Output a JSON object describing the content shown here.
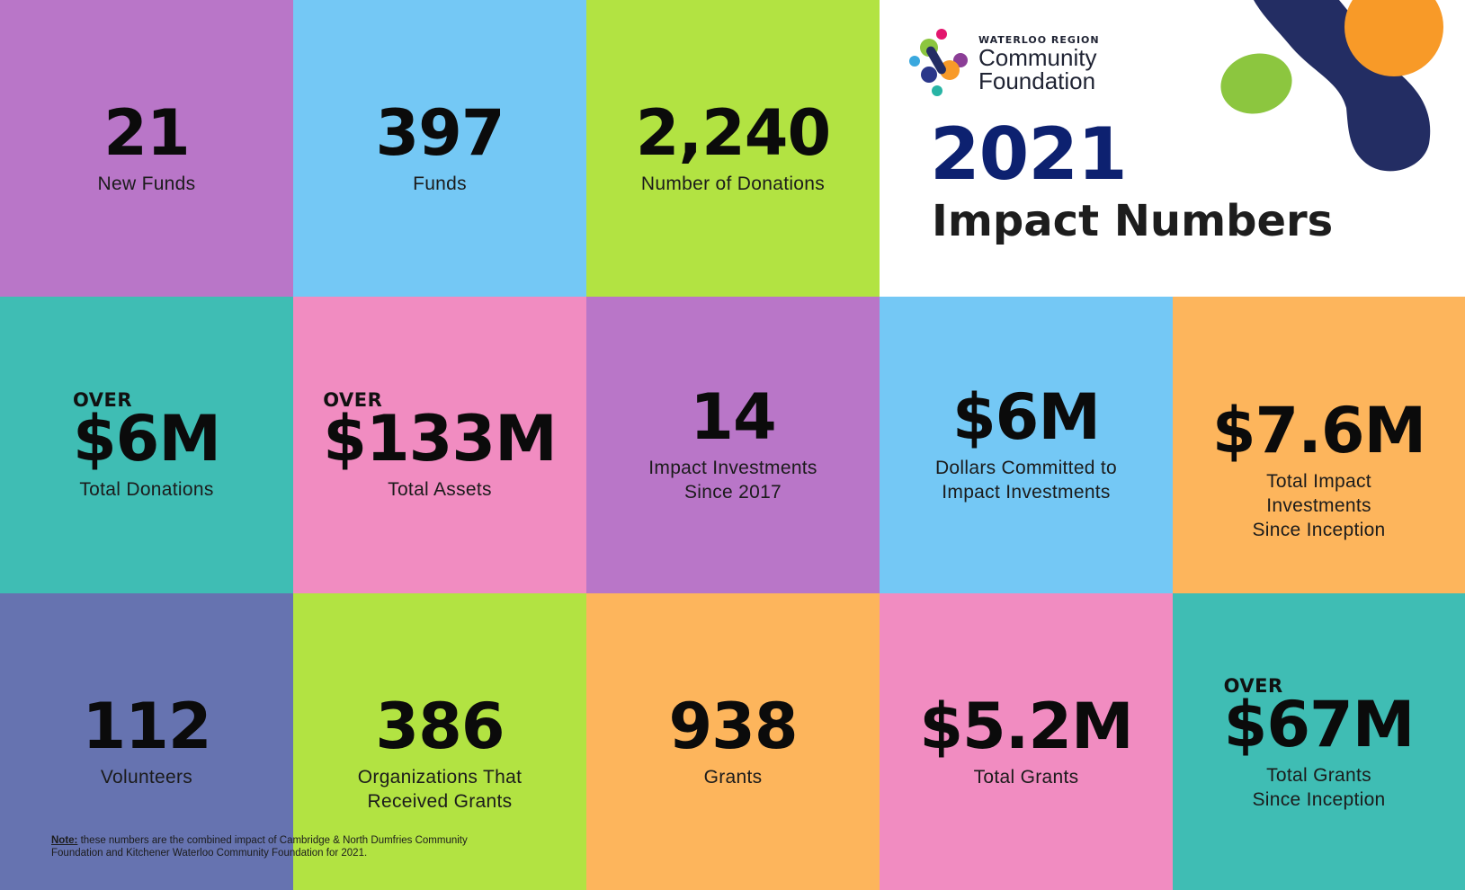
{
  "header": {
    "logo": {
      "line1": "WATERLOO REGION",
      "line2": "Community",
      "line3": "Foundation"
    },
    "year": "2021",
    "subtitle": "Impact Numbers"
  },
  "tiles": [
    {
      "value": "21",
      "label": "New Funds",
      "over": "",
      "color": "#b976c8"
    },
    {
      "value": "397",
      "label": "Funds",
      "over": "",
      "color": "#74c8f5"
    },
    {
      "value": "2,240",
      "label": "Number of Donations",
      "over": "",
      "color": "#b2e342"
    },
    {
      "value": "$6M",
      "label": "Total Donations",
      "over": "OVER",
      "color": "#3fbdb4"
    },
    {
      "value": "$133M",
      "label": "Total Assets",
      "over": "OVER",
      "color": "#f18cc1"
    },
    {
      "value": "14",
      "label": "Impact Investments\nSince 2017",
      "over": "",
      "color": "#b976c8"
    },
    {
      "value": "$6M",
      "label": "Dollars Committed to\nImpact Investments",
      "over": "",
      "color": "#74c8f5"
    },
    {
      "value": "$7.6M",
      "label": "Total Impact\nInvestments\nSince Inception",
      "over": "",
      "color": "#fdb55c"
    },
    {
      "value": "112",
      "label": "Volunteers",
      "over": "",
      "color": "#6673b0"
    },
    {
      "value": "386",
      "label": "Organizations That\nReceived Grants",
      "over": "",
      "color": "#b2e342"
    },
    {
      "value": "938",
      "label": "Grants",
      "over": "",
      "color": "#fdb55c"
    },
    {
      "value": "$5.2M",
      "label": "Total Grants",
      "over": "",
      "color": "#f18cc1"
    },
    {
      "value": "$67M",
      "label": "Total Grants\nSince Inception",
      "over": "OVER",
      "color": "#3fbdb4"
    }
  ],
  "note": {
    "prefix": "Note:",
    "text": " these numbers are the combined impact of Cambridge & North Dumfries Community Foundation and Kitchener Waterloo Community Foundation for 2021."
  },
  "colors": {
    "year": "#0d2170",
    "deco_navy": "#232d63",
    "deco_orange": "#f89a28",
    "deco_green": "#8cc63f"
  },
  "icons": [
    "community-foundation-logo-icon",
    "decorative-blob-icon"
  ]
}
